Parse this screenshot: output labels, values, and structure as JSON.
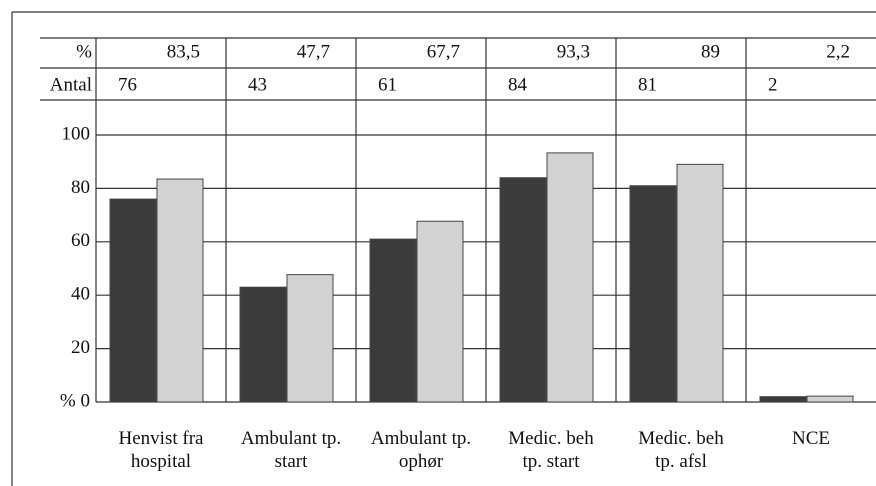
{
  "chart_data": {
    "type": "bar",
    "categories": [
      [
        "Henvist fra",
        "hospital"
      ],
      [
        "Ambulant tp.",
        "start"
      ],
      [
        "Ambulant tp.",
        "ophør"
      ],
      [
        "Medic. beh",
        "tp. start"
      ],
      [
        "Medic. beh",
        "tp. afsl"
      ],
      [
        "NCE"
      ]
    ],
    "series": [
      {
        "name": "Antal",
        "color": "#3b3b3b",
        "values": [
          76,
          43,
          61,
          84,
          81,
          2
        ]
      },
      {
        "name": "%",
        "color": "#d2d2d2",
        "values": [
          83.5,
          47.7,
          67.7,
          93.3,
          89,
          2.2
        ],
        "value_labels": [
          "83,5",
          "47,7",
          "67,7",
          "93,3",
          "89",
          "2,2"
        ]
      }
    ],
    "ylim": [
      0,
      100
    ],
    "yticks": [
      {
        "value": 0,
        "label": "% 0"
      },
      20,
      40,
      60,
      80,
      100
    ],
    "grid": true
  }
}
